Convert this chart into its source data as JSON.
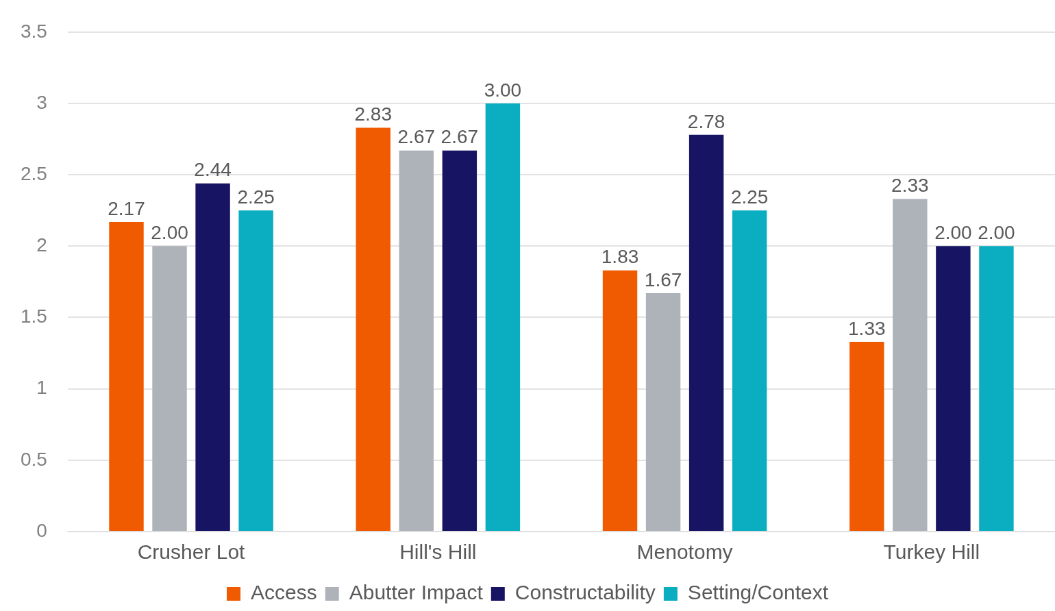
{
  "chart_data": {
    "type": "bar",
    "categories": [
      "Crusher Lot",
      "Hill's Hill",
      "Menotomy",
      "Turkey Hill"
    ],
    "series": [
      {
        "name": "Access",
        "color": "#f05a00",
        "values": [
          2.17,
          2.83,
          1.83,
          1.33
        ],
        "value_labels": [
          "2.17",
          "2.83",
          "1.83",
          "1.33"
        ]
      },
      {
        "name": "Abutter Impact",
        "color": "#aeb2b9",
        "values": [
          2.0,
          2.67,
          1.67,
          2.33
        ],
        "value_labels": [
          "2.00",
          "2.67",
          "1.67",
          "2.33"
        ]
      },
      {
        "name": "Constructability",
        "color": "#171463",
        "values": [
          2.44,
          2.67,
          2.78,
          2.0
        ],
        "value_labels": [
          "2.44",
          "2.67",
          "2.78",
          "2.00"
        ]
      },
      {
        "name": "Setting/Context",
        "color": "#0badc1",
        "values": [
          2.25,
          3.0,
          2.25,
          2.0
        ],
        "value_labels": [
          "2.25",
          "3.00",
          "2.25",
          "2.00"
        ]
      }
    ],
    "ylim": [
      0,
      3.5
    ],
    "yticks": [
      0,
      0.5,
      1,
      1.5,
      2,
      2.5,
      3,
      3.5
    ],
    "grid": "y",
    "legend": "bottom"
  }
}
